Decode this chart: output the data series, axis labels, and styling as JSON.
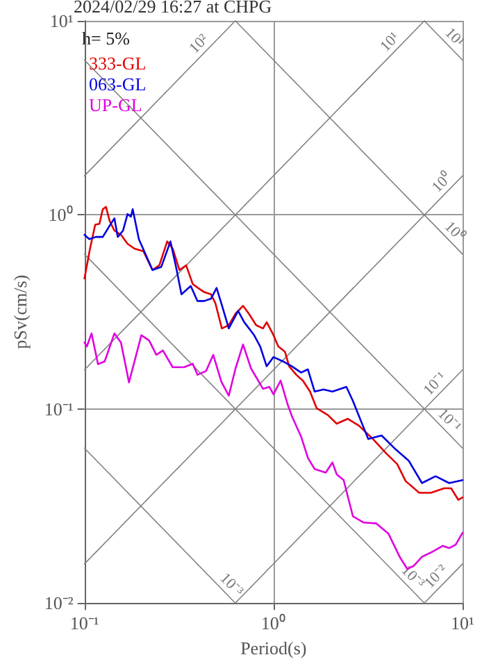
{
  "chart_data": {
    "type": "line",
    "title": "2024/02/29 16:27 at CHPG",
    "xlabel": "Period(s)",
    "ylabel": "pSv(cm/s)",
    "log": "xy",
    "grid": true,
    "legend": "top left",
    "marker": "none",
    "line_style": "solid",
    "xlim": [
      0.1,
      10
    ],
    "xticks": [
      {
        "value": 0.1,
        "label": "10⁻¹"
      },
      {
        "value": 1,
        "label": "10⁰"
      },
      {
        "value": 10,
        "label": "10¹"
      }
    ],
    "ylim": [
      0.01,
      10
    ],
    "yticks": [
      {
        "value": 0.01,
        "label": "10⁻²"
      },
      {
        "value": 0.1,
        "label": "10⁻¹"
      },
      {
        "value": 1,
        "label": "10⁰"
      },
      {
        "value": 10,
        "label": "10¹"
      }
    ],
    "annotations": [
      "h= 5%",
      {
        "text": "10²",
        "x": 0.44,
        "y": 7.0
      },
      {
        "text": "10¹",
        "x": 4.5,
        "y": 7.16
      },
      {
        "text": "10¹",
        "x": 8.3,
        "y": 7.57
      },
      {
        "text": "10⁰",
        "x": 8.5,
        "y": 1.35
      },
      {
        "text": "10⁰",
        "x": 8.3,
        "y": 0.757
      },
      {
        "text": "10⁻¹",
        "x": 7.8,
        "y": 0.124
      },
      {
        "text": "10⁻¹",
        "x": 7.8,
        "y": 0.0805
      },
      {
        "text": "10⁻³",
        "x": 0.55,
        "y": 0.01143
      },
      {
        "text": "10⁻³",
        "x": 5.0,
        "y": 0.01256
      },
      {
        "text": "10⁻²",
        "x": 7.9,
        "y": 0.0126
      }
    ],
    "series": [
      {
        "color": "#808080",
        "x": [
          0.1,
          0.628
        ],
        "values": [
          1.59,
          10
        ]
      },
      {
        "color": "#808080",
        "x": [
          0.1,
          6.28
        ],
        "values": [
          0.159,
          10
        ]
      },
      {
        "color": "#808080",
        "x": [
          0.1,
          10
        ],
        "values": [
          0.0159,
          1.59
        ]
      },
      {
        "color": "#808080",
        "x": [
          0.628,
          10
        ],
        "values": [
          0.01,
          0.159
        ]
      },
      {
        "color": "#808080",
        "x": [
          6.28,
          10
        ],
        "values": [
          0.01,
          0.0159
        ]
      },
      {
        "color": "#808080",
        "x": [
          6.28,
          10
        ],
        "values": [
          10,
          6.28
        ]
      },
      {
        "color": "#808080",
        "x": [
          0.628,
          10
        ],
        "values": [
          10,
          0.628
        ]
      },
      {
        "color": "#808080",
        "x": [
          0.1,
          10
        ],
        "values": [
          6.28,
          0.0628
        ]
      },
      {
        "color": "#808080",
        "x": [
          0.1,
          6.28
        ],
        "values": [
          0.628,
          0.01
        ]
      },
      {
        "color": "#808080",
        "x": [
          0.1,
          0.628
        ],
        "values": [
          0.0628,
          0.01
        ]
      },
      {
        "name": "333-GL",
        "color": "#e00000",
        "x": [
          0.1,
          0.107,
          0.114,
          0.12,
          0.125,
          0.13,
          0.136,
          0.144,
          0.156,
          0.169,
          0.184,
          0.205,
          0.229,
          0.249,
          0.274,
          0.293,
          0.318,
          0.345,
          0.374,
          0.399,
          0.43,
          0.467,
          0.493,
          0.533,
          0.58,
          0.63,
          0.69,
          0.74,
          0.81,
          0.88,
          0.92,
          0.99,
          1.06,
          1.15,
          1.21,
          1.32,
          1.43,
          1.56,
          1.69,
          1.94,
          2.16,
          2.47,
          2.83,
          3.36,
          3.95,
          4.51,
          5.0,
          5.9,
          6.8,
          8.0,
          8.7,
          9.5,
          10
        ],
        "values": [
          0.47,
          0.67,
          0.89,
          0.9,
          1.07,
          1.1,
          0.93,
          0.83,
          0.79,
          0.71,
          0.67,
          0.65,
          0.52,
          0.55,
          0.73,
          0.67,
          0.52,
          0.55,
          0.44,
          0.42,
          0.4,
          0.39,
          0.35,
          0.26,
          0.27,
          0.31,
          0.34,
          0.31,
          0.27,
          0.26,
          0.28,
          0.245,
          0.21,
          0.197,
          0.166,
          0.15,
          0.14,
          0.123,
          0.101,
          0.093,
          0.084,
          0.089,
          0.082,
          0.07,
          0.059,
          0.052,
          0.0425,
          0.037,
          0.037,
          0.039,
          0.039,
          0.034,
          0.035
        ]
      },
      {
        "name": "063-GL",
        "color": "#0000e0",
        "x": [
          0.1,
          0.106,
          0.115,
          0.125,
          0.136,
          0.144,
          0.15,
          0.16,
          0.169,
          0.176,
          0.18,
          0.194,
          0.21,
          0.229,
          0.255,
          0.285,
          0.305,
          0.326,
          0.365,
          0.396,
          0.43,
          0.467,
          0.5,
          0.53,
          0.58,
          0.65,
          0.7,
          0.79,
          0.85,
          0.92,
          1.0,
          1.12,
          1.25,
          1.4,
          1.52,
          1.65,
          1.84,
          2.05,
          2.43,
          2.63,
          3.0,
          3.17,
          3.73,
          4.42,
          5.2,
          6.1,
          7.2,
          8.5,
          10
        ],
        "values": [
          0.79,
          0.75,
          0.77,
          0.77,
          0.88,
          0.96,
          0.77,
          0.83,
          1.01,
          0.98,
          1.07,
          0.75,
          0.63,
          0.52,
          0.54,
          0.73,
          0.54,
          0.39,
          0.43,
          0.36,
          0.36,
          0.37,
          0.42,
          0.35,
          0.26,
          0.32,
          0.28,
          0.24,
          0.21,
          0.166,
          0.185,
          0.176,
          0.166,
          0.154,
          0.16,
          0.123,
          0.126,
          0.123,
          0.13,
          0.11,
          0.08,
          0.07,
          0.073,
          0.062,
          0.054,
          0.0415,
          0.045,
          0.0415,
          0.043
        ]
      },
      {
        "name": "UP-GL",
        "color": "#e000e0",
        "x": [
          0.1,
          0.103,
          0.109,
          0.118,
          0.128,
          0.144,
          0.156,
          0.172,
          0.2,
          0.22,
          0.24,
          0.26,
          0.293,
          0.336,
          0.374,
          0.396,
          0.44,
          0.48,
          0.53,
          0.58,
          0.63,
          0.69,
          0.76,
          0.88,
          0.95,
          1.0,
          1.09,
          1.19,
          1.25,
          1.4,
          1.52,
          1.65,
          1.89,
          2.05,
          2.16,
          2.35,
          2.63,
          3.0,
          3.5,
          4.05,
          4.65,
          5.1,
          5.5,
          6.1,
          6.8,
          7.85,
          8.5,
          9.2,
          10
        ],
        "values": [
          0.22,
          0.21,
          0.245,
          0.17,
          0.176,
          0.245,
          0.22,
          0.137,
          0.24,
          0.225,
          0.19,
          0.2,
          0.164,
          0.164,
          0.171,
          0.15,
          0.157,
          0.19,
          0.138,
          0.117,
          0.162,
          0.215,
          0.162,
          0.127,
          0.13,
          0.119,
          0.14,
          0.105,
          0.092,
          0.072,
          0.056,
          0.049,
          0.047,
          0.053,
          0.046,
          0.043,
          0.028,
          0.026,
          0.0257,
          0.0228,
          0.0173,
          0.015,
          0.0155,
          0.0173,
          0.0182,
          0.0197,
          0.0192,
          0.02,
          0.023
        ]
      }
    ]
  }
}
